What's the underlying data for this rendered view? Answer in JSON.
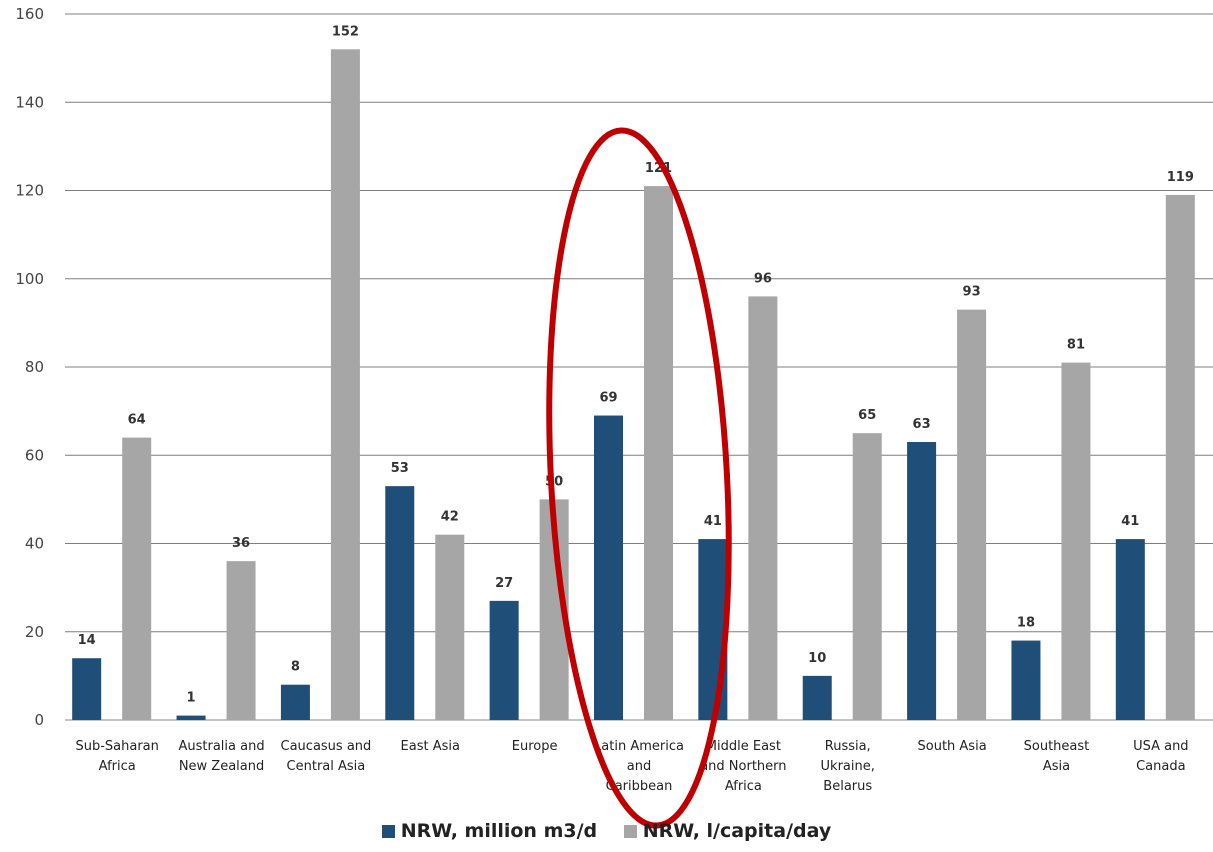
{
  "colors": {
    "series1": "#1f4e79",
    "series2": "#a6a6a6",
    "highlight": "#c00000",
    "grid": "#7f7f7f"
  },
  "chart_data": {
    "type": "bar",
    "categories": [
      [
        "Sub-Saharan",
        "Africa"
      ],
      [
        "Australia and",
        "New Zealand"
      ],
      [
        "Caucasus and",
        "Central Asia"
      ],
      [
        "East Asia"
      ],
      [
        "Europe"
      ],
      [
        "Latin America",
        "and",
        "Caribbean"
      ],
      [
        "Middle East",
        "and Northern",
        "Africa"
      ],
      [
        "Russia,",
        "Ukraine,",
        "Belarus"
      ],
      [
        "South Asia"
      ],
      [
        "Southeast",
        "Asia"
      ],
      [
        "USA and",
        "Canada"
      ]
    ],
    "series": [
      {
        "name": "NRW, million m3/d",
        "values": [
          14,
          1,
          8,
          53,
          27,
          69,
          41,
          10,
          63,
          18,
          41
        ]
      },
      {
        "name": "NRW, l/capita/day",
        "values": [
          64,
          36,
          152,
          42,
          50,
          121,
          96,
          65,
          93,
          81,
          119
        ]
      }
    ],
    "ylim": [
      0,
      160
    ],
    "yticks": [
      0,
      20,
      40,
      60,
      80,
      100,
      120,
      140,
      160
    ],
    "grid": true,
    "legend_position": "bottom",
    "annotation": {
      "shape": "ellipse",
      "color": "#c00000",
      "highlights_category": "Latin America and Caribbean"
    }
  }
}
